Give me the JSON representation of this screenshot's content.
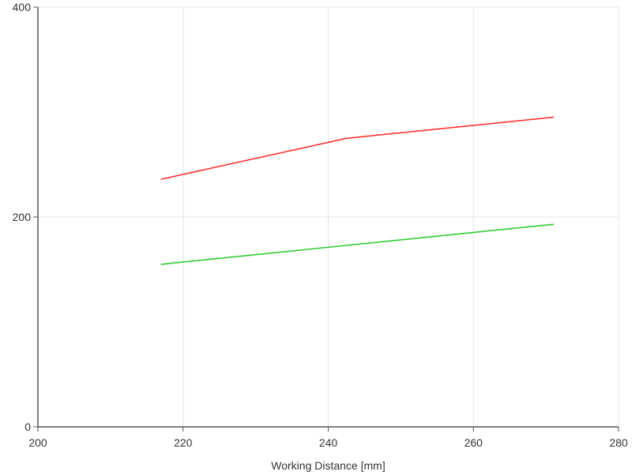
{
  "chart_data": {
    "type": "line",
    "xlabel": "Working Distance [mm]",
    "ylabel": "",
    "xlim": [
      200,
      280
    ],
    "ylim": [
      0,
      400
    ],
    "x_ticks": [
      200,
      220,
      240,
      260,
      280
    ],
    "y_ticks": [
      0,
      200,
      400
    ],
    "grid": true,
    "series": [
      {
        "color": "#ff3333",
        "points": [
          [
            217,
            236
          ],
          [
            242.5,
            275
          ],
          [
            271,
            295
          ]
        ]
      },
      {
        "color": "#33cc33",
        "points": [
          [
            217,
            155
          ],
          [
            271,
            193
          ]
        ]
      }
    ]
  }
}
